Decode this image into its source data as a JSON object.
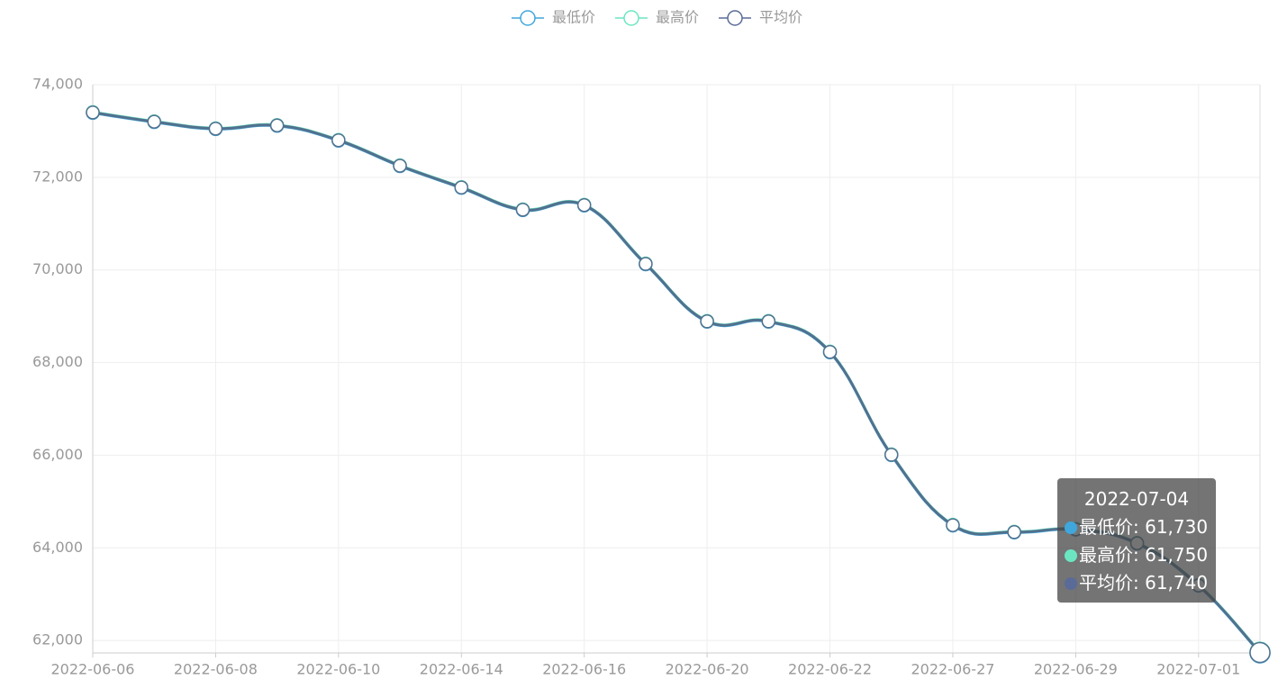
{
  "chart_data": {
    "type": "line",
    "categories": [
      "2022-06-06",
      null,
      "2022-06-08",
      null,
      "2022-06-10",
      null,
      "2022-06-14",
      null,
      "2022-06-16",
      null,
      "2022-06-20",
      null,
      "2022-06-22",
      null,
      "2022-06-27",
      null,
      "2022-06-29",
      null,
      "2022-07-01",
      null
    ],
    "series": [
      {
        "name": "最低价",
        "color": "#3fa7dc",
        "values": [
          73390,
          73190,
          73040,
          73110,
          72790,
          72240,
          71770,
          71290,
          71390,
          70120,
          68880,
          68880,
          68220,
          66000,
          64480,
          64330,
          64390,
          64090,
          63180,
          61730
        ]
      },
      {
        "name": "最高价",
        "color": "#6be6c1",
        "values": [
          73410,
          73210,
          73060,
          73130,
          72810,
          72260,
          71790,
          71310,
          71410,
          70140,
          68900,
          68900,
          68240,
          66020,
          64500,
          64350,
          64410,
          64110,
          63200,
          61750
        ]
      },
      {
        "name": "平均价",
        "color": "#5a6b98",
        "values": [
          73400,
          73200,
          73050,
          73120,
          72800,
          72250,
          71780,
          71300,
          71400,
          70130,
          68890,
          68890,
          68230,
          66010,
          64490,
          64340,
          64400,
          64100,
          63190,
          61740
        ]
      }
    ],
    "ylim": [
      61730,
      74000
    ],
    "yticks": [
      {
        "value": 62000,
        "label": "62,000"
      },
      {
        "value": 64000,
        "label": "64,000"
      },
      {
        "value": 66000,
        "label": "66,000"
      },
      {
        "value": 68000,
        "label": "68,000"
      },
      {
        "value": 70000,
        "label": "70,000"
      },
      {
        "value": 72000,
        "label": "72,000"
      },
      {
        "value": 74000,
        "label": "74,000"
      }
    ],
    "grid": true,
    "legend": "top",
    "tooltip": {
      "title": "2022-07-04",
      "items": [
        {
          "value": 61730,
          "label": "61,730"
        },
        {
          "value": 61750,
          "label": "61,750"
        },
        {
          "value": 61740,
          "label": "61,740"
        }
      ]
    }
  }
}
